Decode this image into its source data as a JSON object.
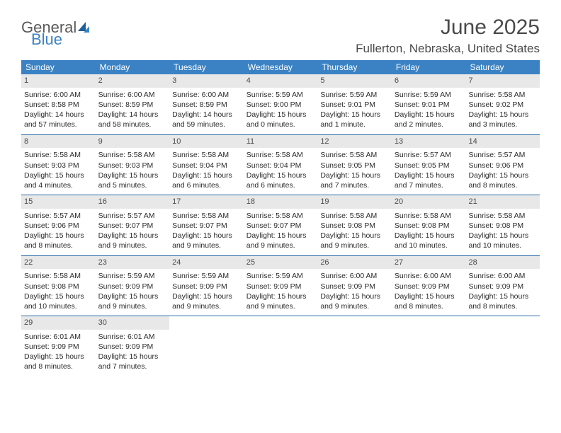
{
  "logo": {
    "line1": "General",
    "line2": "Blue"
  },
  "title": "June 2025",
  "location": "Fullerton, Nebraska, United States",
  "colors": {
    "header_bg": "#3b82c4",
    "header_text": "#ffffff",
    "daynum_bg": "#e8e8e8",
    "row_border": "#2a6aa8",
    "text": "#2b2b2b",
    "title_text": "#4a4a4a",
    "logo_gray": "#5a5a5a",
    "logo_blue": "#3b82c4"
  },
  "fonts": {
    "title_size": 30,
    "location_size": 17,
    "dayheader_size": 12,
    "daynum_size": 11,
    "body_size": 10.5
  },
  "day_headers": [
    "Sunday",
    "Monday",
    "Tuesday",
    "Wednesday",
    "Thursday",
    "Friday",
    "Saturday"
  ],
  "weeks": [
    [
      {
        "num": "1",
        "sunrise": "6:00 AM",
        "sunset": "8:58 PM",
        "daylight": "14 hours and 57 minutes."
      },
      {
        "num": "2",
        "sunrise": "6:00 AM",
        "sunset": "8:59 PM",
        "daylight": "14 hours and 58 minutes."
      },
      {
        "num": "3",
        "sunrise": "6:00 AM",
        "sunset": "8:59 PM",
        "daylight": "14 hours and 59 minutes."
      },
      {
        "num": "4",
        "sunrise": "5:59 AM",
        "sunset": "9:00 PM",
        "daylight": "15 hours and 0 minutes."
      },
      {
        "num": "5",
        "sunrise": "5:59 AM",
        "sunset": "9:01 PM",
        "daylight": "15 hours and 1 minute."
      },
      {
        "num": "6",
        "sunrise": "5:59 AM",
        "sunset": "9:01 PM",
        "daylight": "15 hours and 2 minutes."
      },
      {
        "num": "7",
        "sunrise": "5:58 AM",
        "sunset": "9:02 PM",
        "daylight": "15 hours and 3 minutes."
      }
    ],
    [
      {
        "num": "8",
        "sunrise": "5:58 AM",
        "sunset": "9:03 PM",
        "daylight": "15 hours and 4 minutes."
      },
      {
        "num": "9",
        "sunrise": "5:58 AM",
        "sunset": "9:03 PM",
        "daylight": "15 hours and 5 minutes."
      },
      {
        "num": "10",
        "sunrise": "5:58 AM",
        "sunset": "9:04 PM",
        "daylight": "15 hours and 6 minutes."
      },
      {
        "num": "11",
        "sunrise": "5:58 AM",
        "sunset": "9:04 PM",
        "daylight": "15 hours and 6 minutes."
      },
      {
        "num": "12",
        "sunrise": "5:58 AM",
        "sunset": "9:05 PM",
        "daylight": "15 hours and 7 minutes."
      },
      {
        "num": "13",
        "sunrise": "5:57 AM",
        "sunset": "9:05 PM",
        "daylight": "15 hours and 7 minutes."
      },
      {
        "num": "14",
        "sunrise": "5:57 AM",
        "sunset": "9:06 PM",
        "daylight": "15 hours and 8 minutes."
      }
    ],
    [
      {
        "num": "15",
        "sunrise": "5:57 AM",
        "sunset": "9:06 PM",
        "daylight": "15 hours and 8 minutes."
      },
      {
        "num": "16",
        "sunrise": "5:57 AM",
        "sunset": "9:07 PM",
        "daylight": "15 hours and 9 minutes."
      },
      {
        "num": "17",
        "sunrise": "5:58 AM",
        "sunset": "9:07 PM",
        "daylight": "15 hours and 9 minutes."
      },
      {
        "num": "18",
        "sunrise": "5:58 AM",
        "sunset": "9:07 PM",
        "daylight": "15 hours and 9 minutes."
      },
      {
        "num": "19",
        "sunrise": "5:58 AM",
        "sunset": "9:08 PM",
        "daylight": "15 hours and 9 minutes."
      },
      {
        "num": "20",
        "sunrise": "5:58 AM",
        "sunset": "9:08 PM",
        "daylight": "15 hours and 10 minutes."
      },
      {
        "num": "21",
        "sunrise": "5:58 AM",
        "sunset": "9:08 PM",
        "daylight": "15 hours and 10 minutes."
      }
    ],
    [
      {
        "num": "22",
        "sunrise": "5:58 AM",
        "sunset": "9:08 PM",
        "daylight": "15 hours and 10 minutes."
      },
      {
        "num": "23",
        "sunrise": "5:59 AM",
        "sunset": "9:09 PM",
        "daylight": "15 hours and 9 minutes."
      },
      {
        "num": "24",
        "sunrise": "5:59 AM",
        "sunset": "9:09 PM",
        "daylight": "15 hours and 9 minutes."
      },
      {
        "num": "25",
        "sunrise": "5:59 AM",
        "sunset": "9:09 PM",
        "daylight": "15 hours and 9 minutes."
      },
      {
        "num": "26",
        "sunrise": "6:00 AM",
        "sunset": "9:09 PM",
        "daylight": "15 hours and 9 minutes."
      },
      {
        "num": "27",
        "sunrise": "6:00 AM",
        "sunset": "9:09 PM",
        "daylight": "15 hours and 8 minutes."
      },
      {
        "num": "28",
        "sunrise": "6:00 AM",
        "sunset": "9:09 PM",
        "daylight": "15 hours and 8 minutes."
      }
    ],
    [
      {
        "num": "29",
        "sunrise": "6:01 AM",
        "sunset": "9:09 PM",
        "daylight": "15 hours and 8 minutes."
      },
      {
        "num": "30",
        "sunrise": "6:01 AM",
        "sunset": "9:09 PM",
        "daylight": "15 hours and 7 minutes."
      },
      {
        "empty": true
      },
      {
        "empty": true
      },
      {
        "empty": true
      },
      {
        "empty": true
      },
      {
        "empty": true
      }
    ]
  ],
  "labels": {
    "sunrise": "Sunrise: ",
    "sunset": "Sunset: ",
    "daylight": "Daylight: "
  }
}
